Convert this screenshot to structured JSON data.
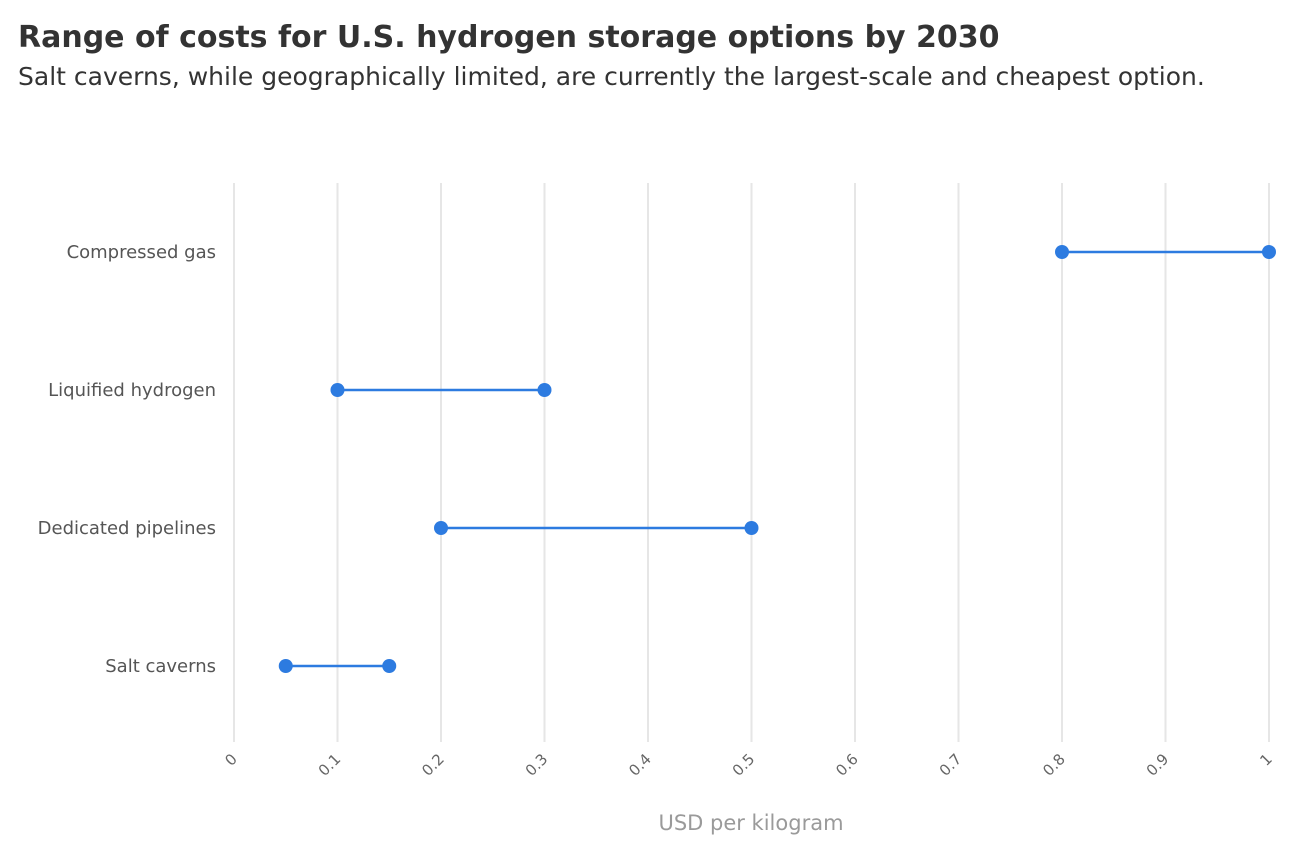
{
  "chart_data": {
    "type": "dumbbell",
    "title": "Range of costs for U.S. hydrogen storage options by 2030",
    "subtitle": "Salt caverns, while geographically limited, are currently the largest-scale and cheapest option.",
    "xlabel": "USD per kilogram",
    "ylabel": "",
    "xlim": [
      0,
      1
    ],
    "x_ticks": [
      "0",
      "0.1",
      "0.2",
      "0.3",
      "0.4",
      "0.5",
      "0.6",
      "0.7",
      "0.8",
      "0.9",
      "1"
    ],
    "x_tick_values": [
      0,
      0.1,
      0.2,
      0.3,
      0.4,
      0.5,
      0.6,
      0.7,
      0.8,
      0.9,
      1
    ],
    "grid": "vertical",
    "color": "#2d7be0",
    "categories": [
      "Compressed gas",
      "Liquified hydrogen",
      "Dedicated pipelines",
      "Salt caverns"
    ],
    "ranges": [
      {
        "category": "Compressed gas",
        "low": 0.8,
        "high": 1.0
      },
      {
        "category": "Liquified hydrogen",
        "low": 0.1,
        "high": 0.3
      },
      {
        "category": "Dedicated pipelines",
        "low": 0.2,
        "high": 0.5
      },
      {
        "category": "Salt caverns",
        "low": 0.05,
        "high": 0.15
      }
    ]
  }
}
